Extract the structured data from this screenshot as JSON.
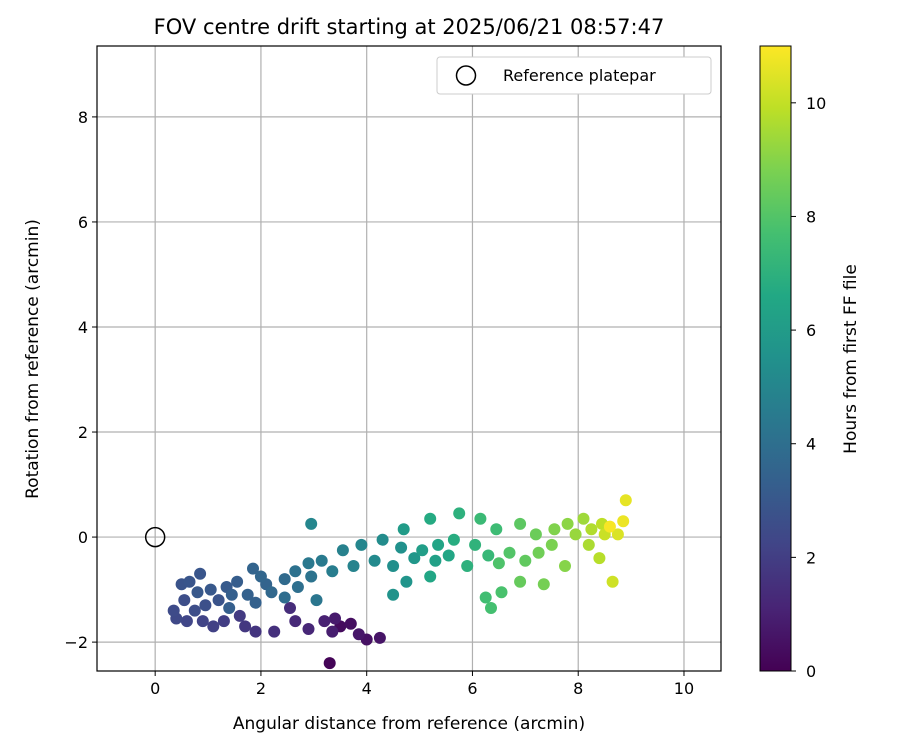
{
  "chart_data": {
    "type": "scatter",
    "title": "FOV centre drift starting at 2025/06/21 08:57:47",
    "xlabel": "Angular distance from reference (arcmin)",
    "ylabel": "Rotation from reference (arcmin)",
    "xlim": [
      -1.1,
      10.7
    ],
    "ylim": [
      -2.55,
      9.35
    ],
    "xticks": [
      0,
      2,
      4,
      6,
      8,
      10
    ],
    "yticks": [
      -2,
      0,
      2,
      4,
      6,
      8
    ],
    "grid": true,
    "legend": {
      "position": "upper right",
      "entries": [
        {
          "label": "Reference platepar",
          "marker": "open-circle"
        }
      ]
    },
    "reference_point": {
      "x": 0,
      "y": 0
    },
    "colorbar": {
      "label": "Hours from first FF file",
      "min": 0,
      "max": 11,
      "ticks": [
        0,
        2,
        4,
        6,
        8,
        10
      ],
      "colormap": "viridis"
    },
    "points": [
      [
        3.3,
        -2.4,
        0.1
      ],
      [
        3.5,
        -1.7,
        0.3
      ],
      [
        3.7,
        -1.65,
        0.4
      ],
      [
        4.0,
        -1.95,
        0.5
      ],
      [
        4.25,
        -1.92,
        0.6
      ],
      [
        3.85,
        -1.85,
        0.7
      ],
      [
        3.4,
        -1.55,
        0.8
      ],
      [
        3.35,
        -1.8,
        0.9
      ],
      [
        3.2,
        -1.6,
        1.0
      ],
      [
        2.9,
        -1.75,
        1.2
      ],
      [
        2.65,
        -1.6,
        1.3
      ],
      [
        2.55,
        -1.35,
        1.4
      ],
      [
        2.25,
        -1.8,
        1.5
      ],
      [
        1.9,
        -1.8,
        1.7
      ],
      [
        1.7,
        -1.7,
        1.8
      ],
      [
        1.6,
        -1.5,
        1.9
      ],
      [
        1.3,
        -1.6,
        2.0
      ],
      [
        1.1,
        -1.7,
        2.1
      ],
      [
        0.9,
        -1.6,
        2.2
      ],
      [
        0.6,
        -1.6,
        2.3
      ],
      [
        0.4,
        -1.55,
        2.4
      ],
      [
        0.35,
        -1.4,
        2.5
      ],
      [
        0.55,
        -1.2,
        2.6
      ],
      [
        0.75,
        -1.4,
        2.6
      ],
      [
        0.95,
        -1.3,
        2.7
      ],
      [
        1.2,
        -1.2,
        2.8
      ],
      [
        0.5,
        -0.9,
        2.8
      ],
      [
        0.65,
        -0.85,
        2.9
      ],
      [
        0.85,
        -0.7,
        2.9
      ],
      [
        0.8,
        -1.05,
        3.0
      ],
      [
        1.05,
        -1.0,
        3.0
      ],
      [
        1.35,
        -0.95,
        3.1
      ],
      [
        1.55,
        -0.85,
        3.2
      ],
      [
        1.4,
        -1.35,
        3.3
      ],
      [
        1.45,
        -1.1,
        3.3
      ],
      [
        1.75,
        -1.1,
        3.4
      ],
      [
        1.9,
        -1.25,
        3.4
      ],
      [
        2.1,
        -0.9,
        3.5
      ],
      [
        1.85,
        -0.6,
        3.5
      ],
      [
        2.0,
        -0.75,
        3.6
      ],
      [
        2.2,
        -1.05,
        3.7
      ],
      [
        2.45,
        -0.8,
        3.8
      ],
      [
        2.45,
        -1.15,
        3.9
      ],
      [
        2.7,
        -0.95,
        4.0
      ],
      [
        2.65,
        -0.65,
        4.1
      ],
      [
        2.95,
        -0.75,
        4.2
      ],
      [
        3.05,
        -1.2,
        4.3
      ],
      [
        2.9,
        -0.5,
        4.4
      ],
      [
        3.15,
        -0.45,
        4.5
      ],
      [
        3.35,
        -0.65,
        4.6
      ],
      [
        3.55,
        -0.25,
        4.8
      ],
      [
        3.75,
        -0.55,
        4.9
      ],
      [
        2.95,
        0.25,
        5.0
      ],
      [
        3.9,
        -0.15,
        5.0
      ],
      [
        4.15,
        -0.45,
        5.2
      ],
      [
        4.3,
        -0.05,
        5.3
      ],
      [
        4.5,
        -0.55,
        5.4
      ],
      [
        4.65,
        -0.2,
        5.5
      ],
      [
        4.5,
        -1.1,
        5.6
      ],
      [
        4.75,
        -0.85,
        5.7
      ],
      [
        4.9,
        -0.4,
        5.8
      ],
      [
        4.7,
        0.15,
        6.0
      ],
      [
        5.05,
        -0.25,
        6.1
      ],
      [
        5.3,
        -0.45,
        6.2
      ],
      [
        5.35,
        -0.15,
        6.4
      ],
      [
        5.55,
        -0.35,
        6.5
      ],
      [
        5.2,
        -0.75,
        6.5
      ],
      [
        5.2,
        0.35,
        6.7
      ],
      [
        5.65,
        -0.05,
        6.8
      ],
      [
        5.9,
        -0.55,
        7.0
      ],
      [
        5.75,
        0.45,
        7.0
      ],
      [
        6.05,
        -0.15,
        7.1
      ],
      [
        6.3,
        -0.35,
        7.3
      ],
      [
        6.15,
        0.35,
        7.4
      ],
      [
        6.45,
        0.15,
        7.5
      ],
      [
        6.25,
        -1.15,
        7.6
      ],
      [
        6.35,
        -1.35,
        7.7
      ],
      [
        6.55,
        -1.05,
        7.8
      ],
      [
        6.5,
        -0.5,
        7.9
      ],
      [
        6.7,
        -0.3,
        8.0
      ],
      [
        6.9,
        0.25,
        8.2
      ],
      [
        7.0,
        -0.45,
        8.3
      ],
      [
        6.9,
        -0.85,
        8.4
      ],
      [
        7.2,
        0.05,
        8.5
      ],
      [
        7.25,
        -0.3,
        8.6
      ],
      [
        7.35,
        -0.9,
        8.7
      ],
      [
        7.5,
        -0.15,
        8.8
      ],
      [
        7.55,
        0.15,
        8.9
      ],
      [
        7.75,
        -0.55,
        9.0
      ],
      [
        7.8,
        0.25,
        9.1
      ],
      [
        7.95,
        0.05,
        9.3
      ],
      [
        8.1,
        0.35,
        9.4
      ],
      [
        8.2,
        -0.15,
        9.6
      ],
      [
        8.25,
        0.15,
        9.7
      ],
      [
        8.4,
        -0.4,
        9.8
      ],
      [
        8.45,
        0.25,
        9.9
      ],
      [
        8.5,
        0.05,
        10.1
      ],
      [
        8.65,
        -0.85,
        10.2
      ],
      [
        8.75,
        0.05,
        10.4
      ],
      [
        8.9,
        0.7,
        10.6
      ],
      [
        8.85,
        0.3,
        10.7
      ],
      [
        8.6,
        0.2,
        10.9
      ]
    ]
  }
}
